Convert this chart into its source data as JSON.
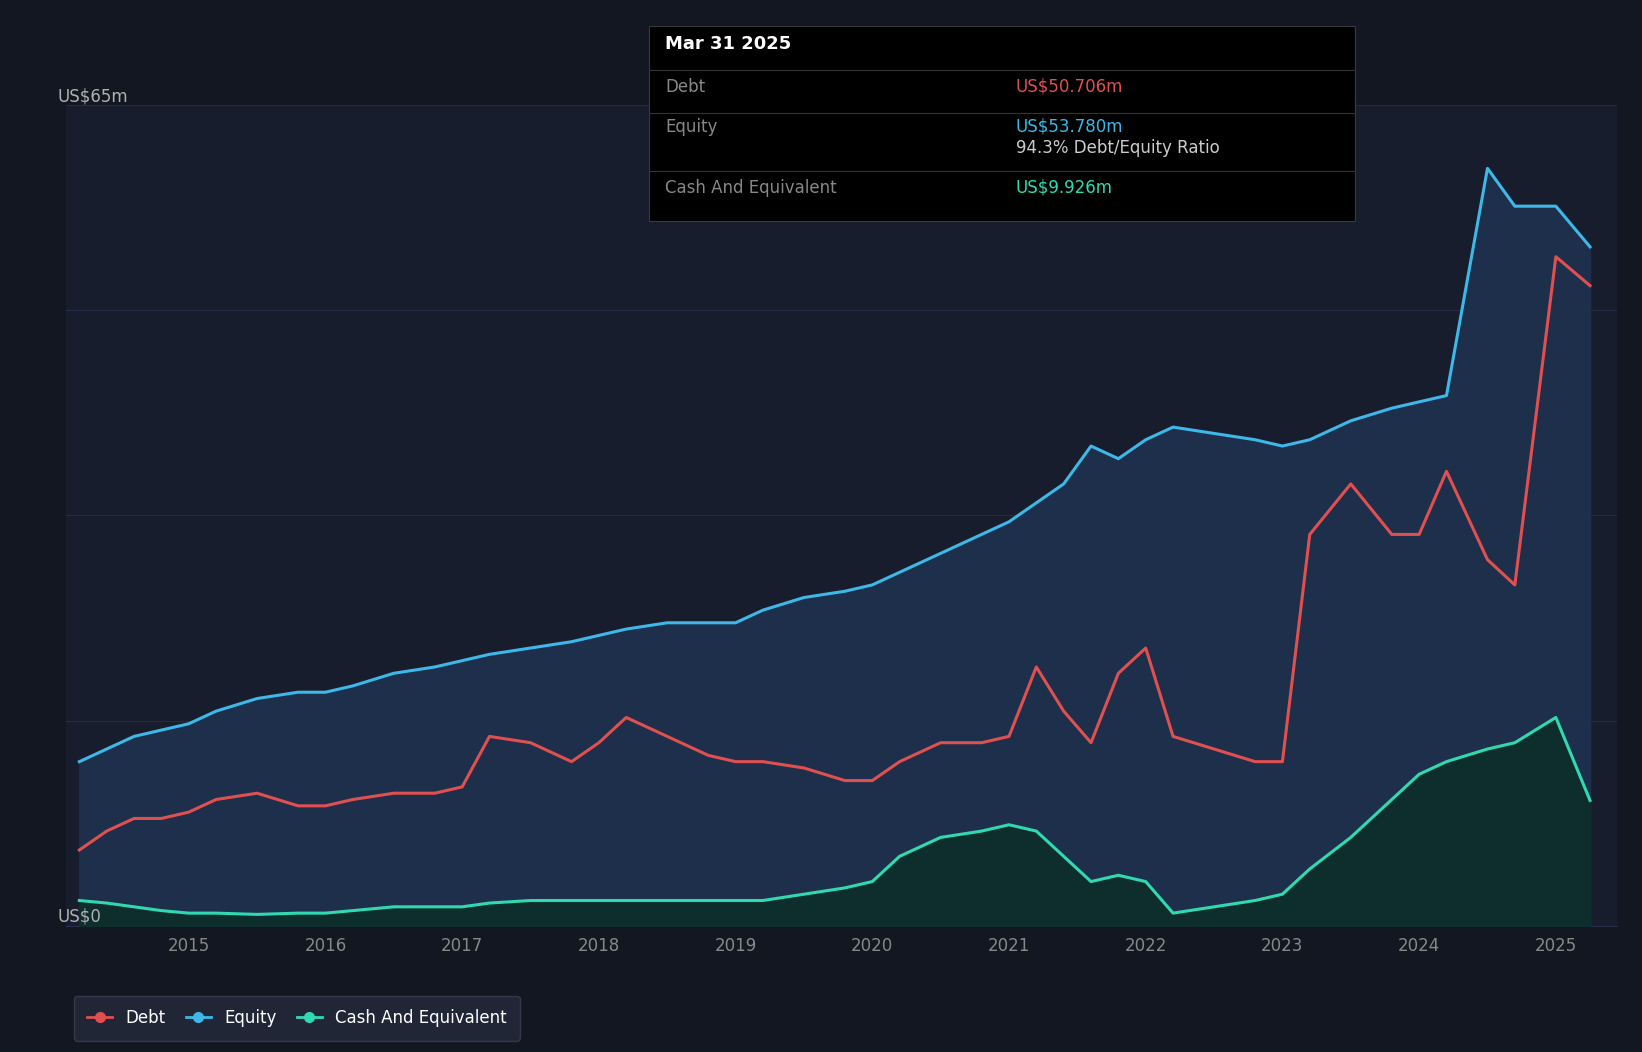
{
  "bg_color": "#131722",
  "plot_bg_color": "#181d2d",
  "grid_color": "#2a3050",
  "ylabel": "US$65m",
  "y0_label": "US$0",
  "ylim": [
    0,
    65
  ],
  "xlim_start": 2014.1,
  "xlim_end": 2025.45,
  "xtick_labels": [
    "2015",
    "2016",
    "2017",
    "2018",
    "2019",
    "2020",
    "2021",
    "2022",
    "2023",
    "2024",
    "2025"
  ],
  "xtick_positions": [
    2015,
    2016,
    2017,
    2018,
    2019,
    2020,
    2021,
    2022,
    2023,
    2024,
    2025
  ],
  "debt_color": "#e05050",
  "equity_color": "#3db8e8",
  "cash_color": "#30d9b0",
  "fill_equity_color": "#1d2f4a",
  "fill_equity_alpha": 1.0,
  "fill_debt_above_equity_color": "#6b1515",
  "fill_cash_color": "#0e2e2e",
  "fill_cash_alpha": 1.0,
  "tooltip_bg": "#000000",
  "tooltip_border": "#3a3a3a",
  "tooltip_date": "Mar 31 2025",
  "tooltip_debt_label": "Debt",
  "tooltip_debt_value": "US$50.706m",
  "tooltip_equity_label": "Equity",
  "tooltip_equity_value": "US$53.780m",
  "tooltip_ratio": "94.3% Debt/Equity Ratio",
  "tooltip_cash_label": "Cash And Equivalent",
  "tooltip_cash_value": "US$9.926m",
  "legend_items": [
    {
      "label": "Debt",
      "color": "#e05050"
    },
    {
      "label": "Equity",
      "color": "#3db8e8"
    },
    {
      "label": "Cash And Equivalent",
      "color": "#30d9b0"
    }
  ],
  "dates": [
    2014.2,
    2014.4,
    2014.6,
    2014.8,
    2015.0,
    2015.2,
    2015.5,
    2015.8,
    2016.0,
    2016.2,
    2016.5,
    2016.8,
    2017.0,
    2017.2,
    2017.5,
    2017.8,
    2018.0,
    2018.2,
    2018.5,
    2018.8,
    2019.0,
    2019.2,
    2019.5,
    2019.8,
    2020.0,
    2020.2,
    2020.5,
    2020.8,
    2021.0,
    2021.2,
    2021.4,
    2021.6,
    2021.8,
    2022.0,
    2022.2,
    2022.5,
    2022.8,
    2023.0,
    2023.2,
    2023.5,
    2023.8,
    2024.0,
    2024.2,
    2024.5,
    2024.7,
    2025.0,
    2025.25
  ],
  "debt": [
    6.0,
    7.5,
    8.5,
    8.5,
    9.0,
    10.0,
    10.5,
    9.5,
    9.5,
    10.0,
    10.5,
    10.5,
    11.0,
    15.0,
    14.5,
    13.0,
    14.5,
    16.5,
    15.0,
    13.5,
    13.0,
    13.0,
    12.5,
    11.5,
    11.5,
    13.0,
    14.5,
    14.5,
    15.0,
    20.5,
    17.0,
    14.5,
    20.0,
    22.0,
    15.0,
    14.0,
    13.0,
    13.0,
    31.0,
    35.0,
    31.0,
    31.0,
    36.0,
    29.0,
    27.0,
    53.0,
    50.706
  ],
  "equity": [
    13.0,
    14.0,
    15.0,
    15.5,
    16.0,
    17.0,
    18.0,
    18.5,
    18.5,
    19.0,
    20.0,
    20.5,
    21.0,
    21.5,
    22.0,
    22.5,
    23.0,
    23.5,
    24.0,
    24.0,
    24.0,
    25.0,
    26.0,
    26.5,
    27.0,
    28.0,
    29.5,
    31.0,
    32.0,
    33.5,
    35.0,
    38.0,
    37.0,
    38.5,
    39.5,
    39.0,
    38.5,
    38.0,
    38.5,
    40.0,
    41.0,
    41.5,
    42.0,
    60.0,
    57.0,
    57.0,
    53.78
  ],
  "cash": [
    2.0,
    1.8,
    1.5,
    1.2,
    1.0,
    1.0,
    0.9,
    1.0,
    1.0,
    1.2,
    1.5,
    1.5,
    1.5,
    1.8,
    2.0,
    2.0,
    2.0,
    2.0,
    2.0,
    2.0,
    2.0,
    2.0,
    2.5,
    3.0,
    3.5,
    5.5,
    7.0,
    7.5,
    8.0,
    7.5,
    5.5,
    3.5,
    4.0,
    3.5,
    1.0,
    1.5,
    2.0,
    2.5,
    4.5,
    7.0,
    10.0,
    12.0,
    13.0,
    14.0,
    14.5,
    16.5,
    9.926
  ]
}
